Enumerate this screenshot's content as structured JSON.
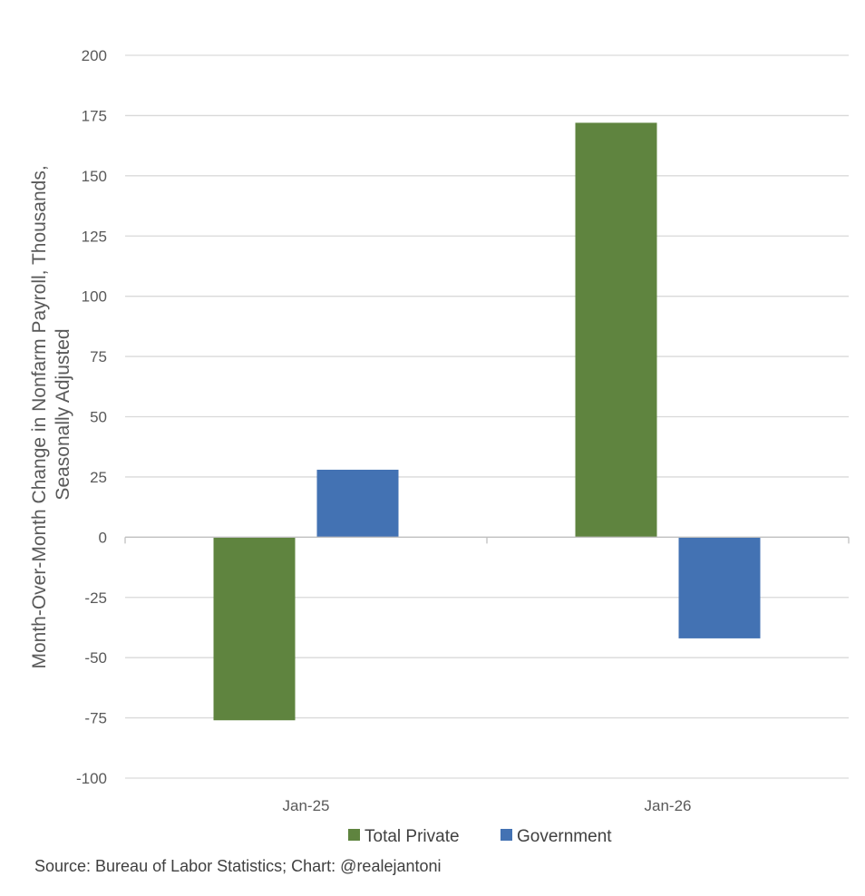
{
  "chart_data": {
    "type": "bar",
    "title": "",
    "xlabel": "",
    "ylabel_lines": [
      "Month-Over-Month Change in Nonfarm Payroll, Thousands,",
      "Seasonally Adjusted"
    ],
    "categories": [
      "Jan-25",
      "Jan-26"
    ],
    "series": [
      {
        "name": "Total Private",
        "color": "#5f843f",
        "values": [
          -76,
          172
        ]
      },
      {
        "name": "Government",
        "color": "#4372b3",
        "values": [
          28,
          -42
        ]
      }
    ],
    "ylim": [
      -100,
      200
    ],
    "yticks": [
      200,
      175,
      150,
      125,
      100,
      75,
      50,
      25,
      0,
      -25,
      -50,
      -75,
      -100
    ],
    "grid": true,
    "legend_position": "bottom"
  },
  "source": "Source: Bureau of Labor Statistics; Chart: @realejantoni",
  "colors": {
    "grid": "#d9d9d9",
    "axis": "#bfbfbf",
    "text": "#595959"
  }
}
